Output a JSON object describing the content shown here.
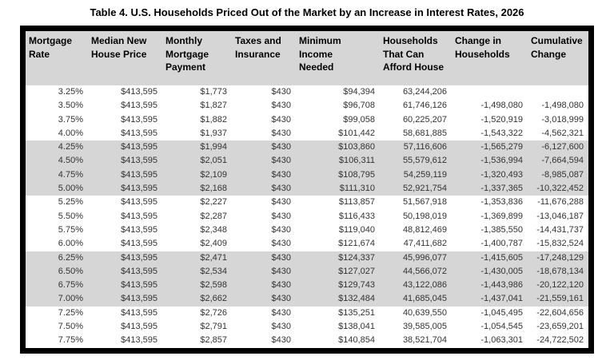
{
  "title": "Table 4. U.S. Households Priced Out of the Market by an Increase in Interest Rates, 2026",
  "table": {
    "columns": [
      "Mortgage\nRate",
      "Median New\nHouse Price",
      "Monthly\nMortgage\nPayment",
      "Taxes and\nInsurance",
      "Minimum\nIncome\nNeeded",
      "Households\nThat Can\nAfford House",
      "Change in\nHouseholds",
      "Cumulative\nChange"
    ],
    "rows": [
      [
        "3.25%",
        "$413,595",
        "$1,773",
        "$430",
        "$94,394",
        "63,244,206",
        "",
        ""
      ],
      [
        "3.50%",
        "$413,595",
        "$1,827",
        "$430",
        "$96,708",
        "61,746,126",
        "-1,498,080",
        "-1,498,080"
      ],
      [
        "3.75%",
        "$413,595",
        "$1,882",
        "$430",
        "$99,058",
        "60,225,207",
        "-1,520,919",
        "-3,018,999"
      ],
      [
        "4.00%",
        "$413,595",
        "$1,937",
        "$430",
        "$101,442",
        "58,681,885",
        "-1,543,322",
        "-4,562,321"
      ],
      [
        "4.25%",
        "$413,595",
        "$1,994",
        "$430",
        "$103,860",
        "57,116,606",
        "-1,565,279",
        "-6,127,600"
      ],
      [
        "4.50%",
        "$413,595",
        "$2,051",
        "$430",
        "$106,311",
        "55,579,612",
        "-1,536,994",
        "-7,664,594"
      ],
      [
        "4.75%",
        "$413,595",
        "$2,109",
        "$430",
        "$108,795",
        "54,259,119",
        "-1,320,493",
        "-8,985,087"
      ],
      [
        "5.00%",
        "$413,595",
        "$2,168",
        "$430",
        "$111,310",
        "52,921,754",
        "-1,337,365",
        "-10,322,452"
      ],
      [
        "5.25%",
        "$413,595",
        "$2,227",
        "$430",
        "$113,857",
        "51,567,918",
        "-1,353,836",
        "-11,676,288"
      ],
      [
        "5.50%",
        "$413,595",
        "$2,287",
        "$430",
        "$116,433",
        "50,198,019",
        "-1,369,899",
        "-13,046,187"
      ],
      [
        "5.75%",
        "$413,595",
        "$2,348",
        "$430",
        "$119,040",
        "48,812,469",
        "-1,385,550",
        "-14,431,737"
      ],
      [
        "6.00%",
        "$413,595",
        "$2,409",
        "$430",
        "$121,674",
        "47,411,682",
        "-1,400,787",
        "-15,832,524"
      ],
      [
        "6.25%",
        "$413,595",
        "$2,471",
        "$430",
        "$124,337",
        "45,996,077",
        "-1,415,605",
        "-17,248,129"
      ],
      [
        "6.50%",
        "$413,595",
        "$2,534",
        "$430",
        "$127,027",
        "44,566,072",
        "-1,430,005",
        "-18,678,134"
      ],
      [
        "6.75%",
        "$413,595",
        "$2,598",
        "$430",
        "$129,743",
        "43,122,086",
        "-1,443,986",
        "-20,122,120"
      ],
      [
        "7.00%",
        "$413,595",
        "$2,662",
        "$430",
        "$132,484",
        "41,685,045",
        "-1,437,041",
        "-21,559,161"
      ],
      [
        "7.25%",
        "$413,595",
        "$2,726",
        "$430",
        "$135,251",
        "40,639,550",
        "-1,045,495",
        "-22,604,656"
      ],
      [
        "7.50%",
        "$413,595",
        "$2,791",
        "$430",
        "$138,041",
        "39,585,005",
        "-1,054,545",
        "-23,659,201"
      ],
      [
        "7.75%",
        "$413,595",
        "$2,857",
        "$430",
        "$140,854",
        "38,521,704",
        "-1,063,301",
        "-24,722,502"
      ]
    ],
    "shaded_row_group_size": 4
  },
  "colors": {
    "header_bg": "#d6d6d6",
    "shaded_row": "#d6d6d6",
    "border": "#000000"
  }
}
